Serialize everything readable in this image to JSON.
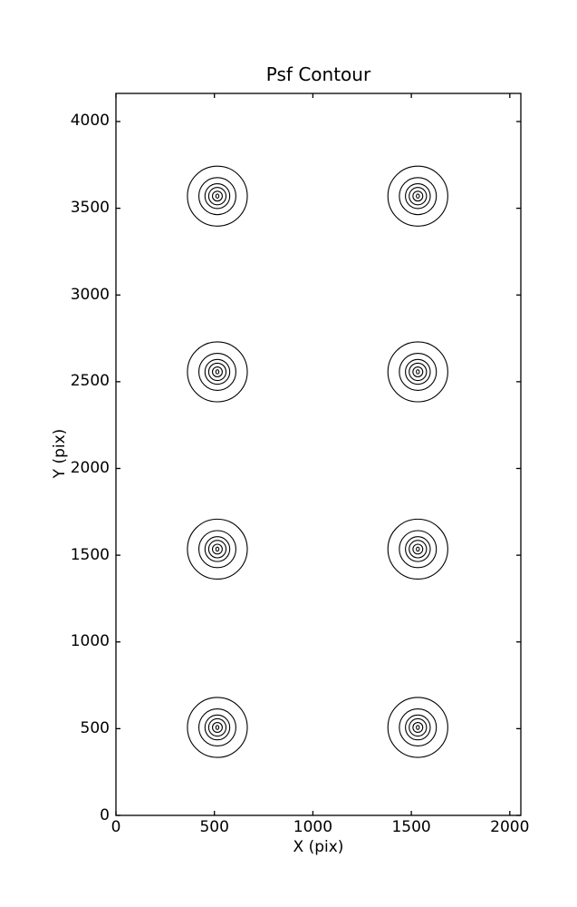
{
  "figure": {
    "background_color": "#ffffff",
    "line_color": "#000000"
  },
  "chart_data": {
    "type": "contour",
    "title": "Psf Contour",
    "xlabel": "X (pix)",
    "ylabel": "Y (pix)",
    "xlim": [
      0,
      2056
    ],
    "ylim": [
      0,
      4162
    ],
    "xticks": [
      0,
      500,
      1000,
      1500,
      2000
    ],
    "yticks": [
      0,
      500,
      1000,
      1500,
      2000,
      2500,
      3000,
      3500,
      4000
    ],
    "grid": false,
    "legend": "none",
    "tick_direction": "in",
    "ticks_on_all_sides": true,
    "psf_centers": [
      {
        "x": 515,
        "y": 507
      },
      {
        "x": 1533,
        "y": 507
      },
      {
        "x": 515,
        "y": 1535
      },
      {
        "x": 1533,
        "y": 1535
      },
      {
        "x": 515,
        "y": 2557
      },
      {
        "x": 1533,
        "y": 2557
      },
      {
        "x": 515,
        "y": 3570
      },
      {
        "x": 1533,
        "y": 3570
      }
    ],
    "contour_radii_x_units": [
      152,
      94,
      63,
      44,
      25,
      9
    ],
    "n_contour_levels": 6
  }
}
